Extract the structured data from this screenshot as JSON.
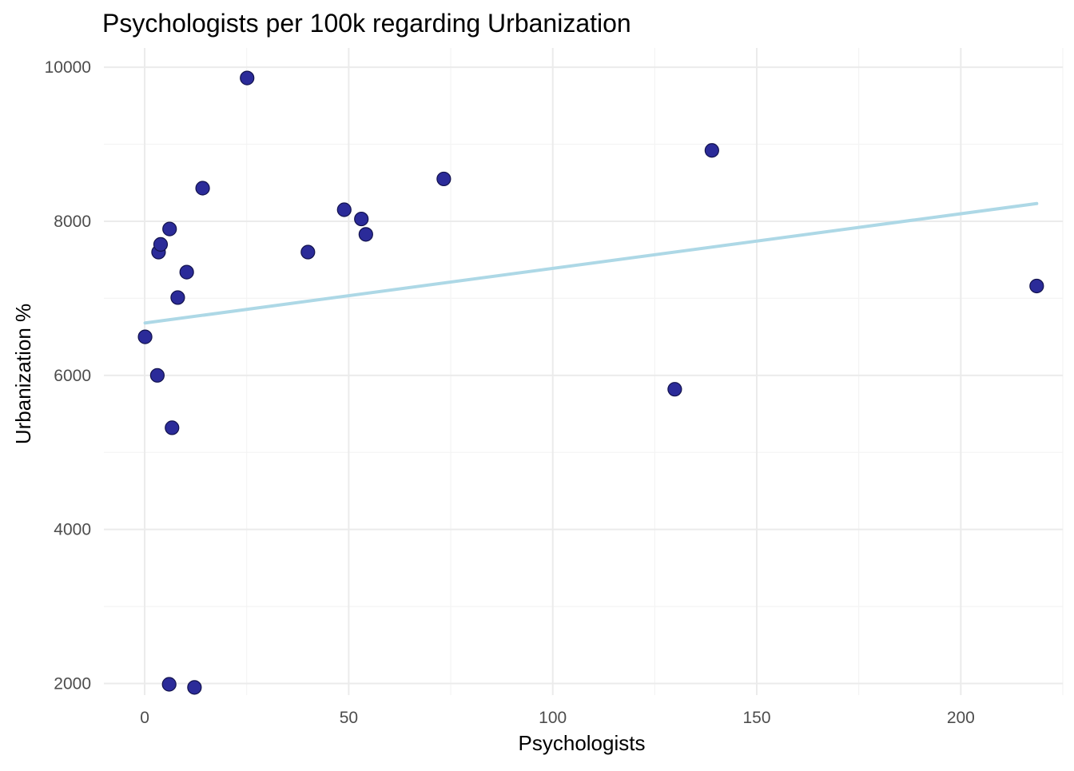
{
  "chart_data": {
    "type": "scatter",
    "title": "Psychologists per 100k regarding Urbanization",
    "xlabel": "Psychologists",
    "ylabel": "Urbanization %",
    "xlim": [
      -10,
      225
    ],
    "ylim": [
      1850,
      10250
    ],
    "x_ticks": [
      0,
      50,
      100,
      150,
      200
    ],
    "y_ticks": [
      2000,
      4000,
      6000,
      8000,
      10000
    ],
    "x_tick_labels": [
      "0",
      "50",
      "100",
      "150",
      "200"
    ],
    "y_tick_labels": [
      "2000",
      "4000",
      "6000",
      "8000",
      "10000"
    ],
    "grid": true,
    "point_color": "#2b2b99",
    "trend_color": "#add8e6",
    "points": [
      {
        "x": 0.1,
        "y": 6500
      },
      {
        "x": 3.1,
        "y": 6000
      },
      {
        "x": 3.4,
        "y": 7600
      },
      {
        "x": 3.9,
        "y": 7700
      },
      {
        "x": 6.1,
        "y": 7900
      },
      {
        "x": 6.0,
        "y": 1990
      },
      {
        "x": 6.7,
        "y": 5320
      },
      {
        "x": 8.1,
        "y": 7010
      },
      {
        "x": 10.3,
        "y": 7340
      },
      {
        "x": 12.2,
        "y": 1950
      },
      {
        "x": 14.2,
        "y": 8430
      },
      {
        "x": 25.1,
        "y": 9860
      },
      {
        "x": 40.0,
        "y": 7600
      },
      {
        "x": 48.9,
        "y": 8150
      },
      {
        "x": 53.1,
        "y": 8030
      },
      {
        "x": 54.2,
        "y": 7830
      },
      {
        "x": 73.3,
        "y": 8550
      },
      {
        "x": 129.9,
        "y": 5820
      },
      {
        "x": 139.0,
        "y": 8920
      },
      {
        "x": 218.6,
        "y": 7160
      }
    ],
    "trend_line": {
      "x": [
        0.1,
        218.6
      ],
      "y": [
        6680,
        8230
      ]
    }
  }
}
